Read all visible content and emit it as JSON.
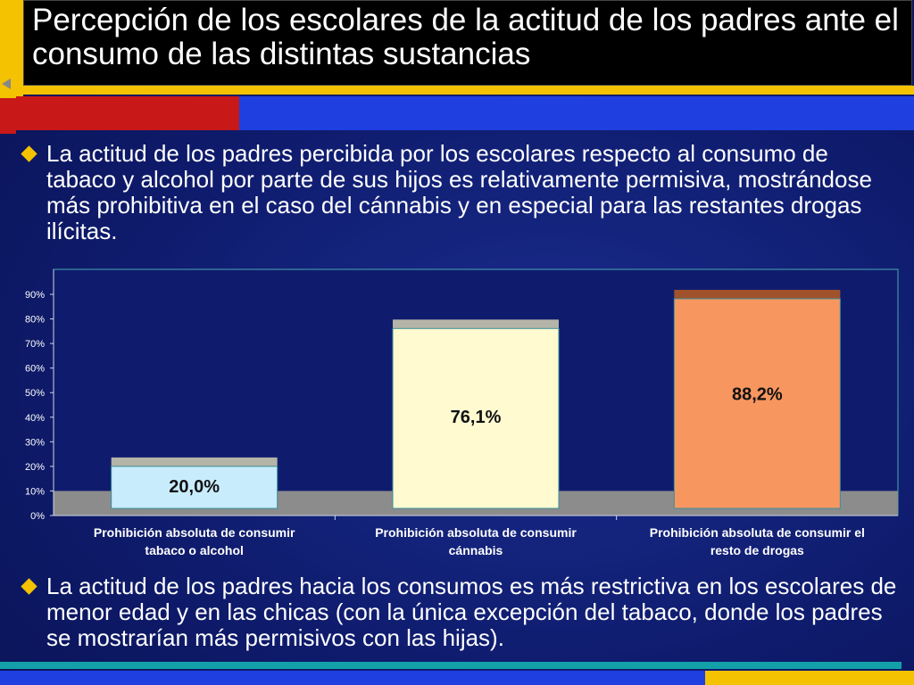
{
  "header": {
    "title": "Percepción de los escolares de la actitud de los padres ante el consumo de las distintas sustancias"
  },
  "bullets": [
    "La actitud de los padres percibida por los escolares respecto al consumo de tabaco y alcohol por parte de sus hijos es relativamente permisiva, mostrándose más prohibitiva en el caso del cánnabis y en especial para las restantes drogas ilícitas.",
    "La actitud de los padres hacia los consumos es más restrictiva en los escolares de menor edad y en las chicas (con la única excepción del tabaco, donde los padres se mostrarían más permisivos con las hijas)."
  ],
  "colors": {
    "accent_yellow": "#f4c200",
    "accent_red": "#c81818",
    "accent_blue": "#1f3fe0",
    "chart_bg": "#0f1c6e",
    "chart_floor": "#8c8c8c",
    "bar_cap": "#b4b4a8",
    "bar_cap_dark": "#a0522d"
  },
  "chart_data": {
    "type": "bar",
    "title": "",
    "xlabel": "",
    "ylabel": "",
    "ylim": [
      0,
      100
    ],
    "yticks": [
      "0%",
      "10%",
      "20%",
      "30%",
      "40%",
      "50%",
      "60%",
      "70%",
      "80%",
      "90%"
    ],
    "grid": false,
    "legend": "none",
    "categories": [
      "Prohibición absoluta de consumir tabaco o alcohol",
      "Prohibición absoluta de consumir cánnabis",
      "Prohibición absoluta de consumir el resto de drogas"
    ],
    "category_lines": [
      [
        "Prohibición absoluta de consumir",
        "tabaco o alcohol"
      ],
      [
        "Prohibición absoluta de consumir",
        "cánnabis"
      ],
      [
        "Prohibición absoluta de consumir el",
        "resto de drogas"
      ]
    ],
    "values": [
      20.0,
      76.1,
      88.2
    ],
    "data_labels": [
      "20,0%",
      "76,1%",
      "88,2%"
    ],
    "bar_colors": [
      "#c8ecfc",
      "#fffad0",
      "#f89660"
    ]
  }
}
